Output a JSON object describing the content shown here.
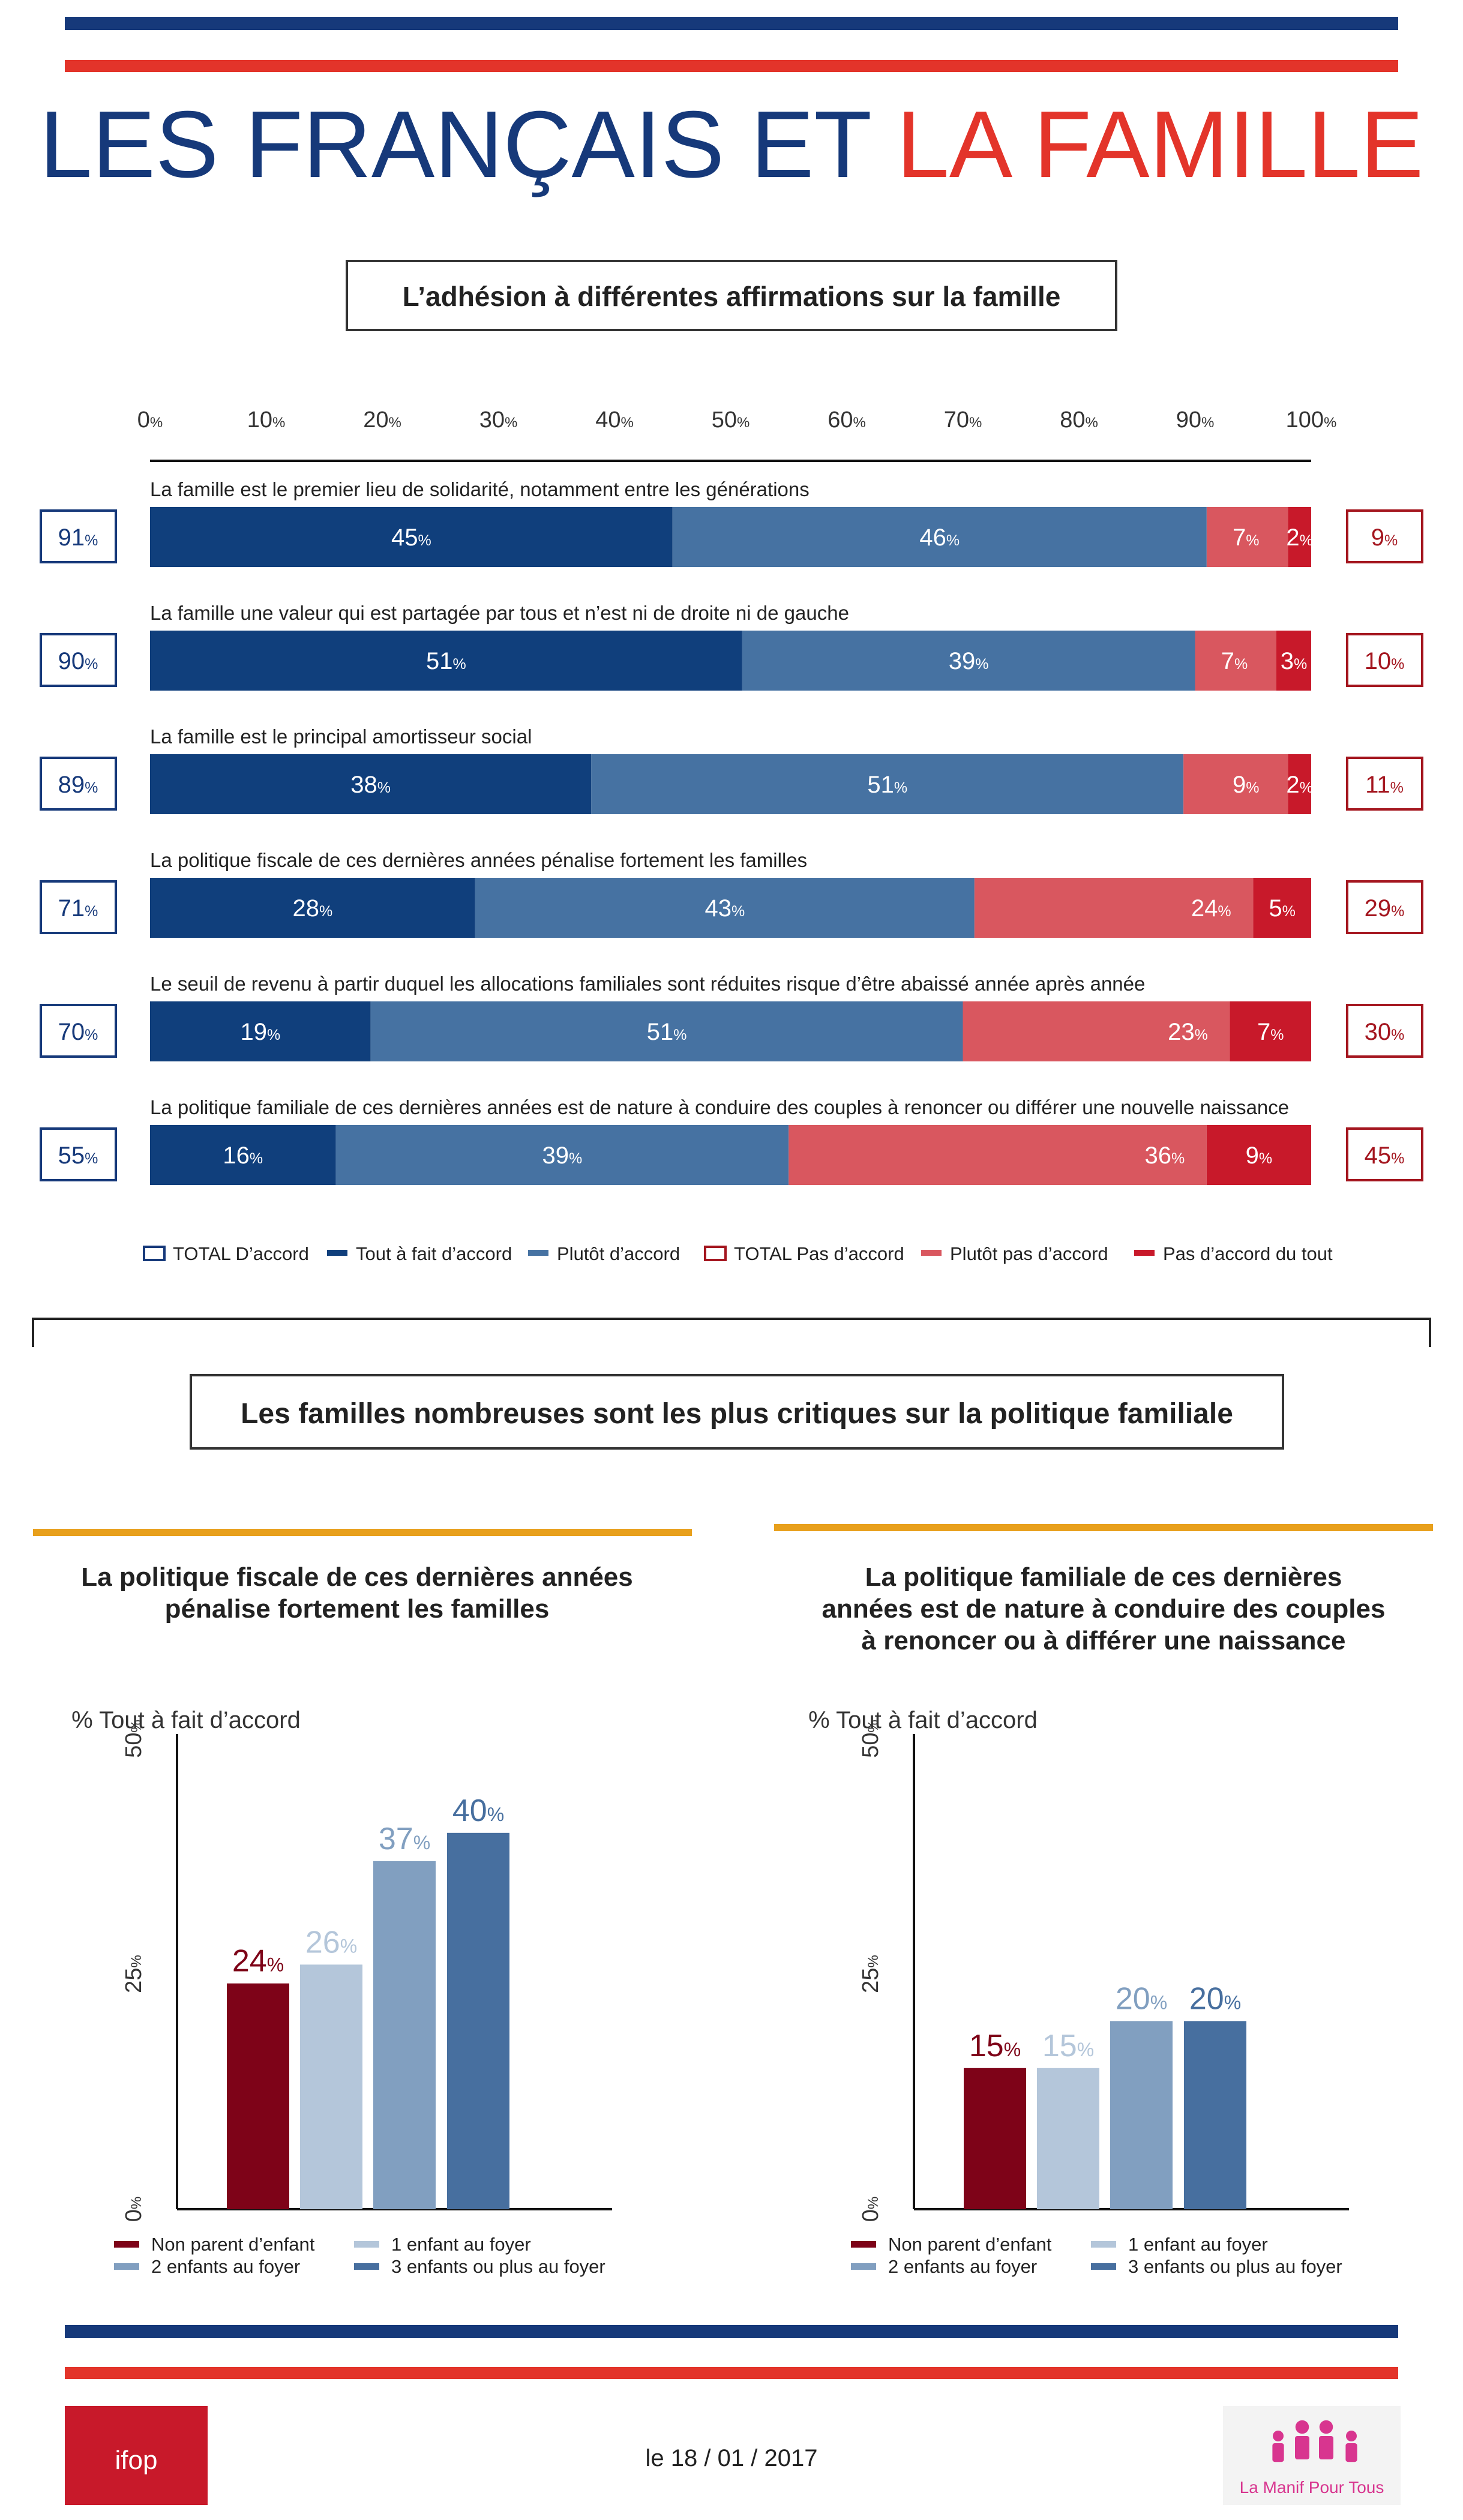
{
  "title": {
    "part1": "LES FRANÇAIS ET ",
    "part2": "LA FAMILLE"
  },
  "colors": {
    "navy": "#16397a",
    "red": "#e3342a",
    "tout_a_fait": "#103f7c",
    "plutot": "#4672a2",
    "plutot_pas": "#d9575f",
    "pas_du_tout": "#c8192a",
    "total_pas_text": "#a4161f",
    "non_parent": "#7e0318",
    "un_enfant": "#b4c6da",
    "deux_enfants": "#819fc0",
    "trois_plus": "#476f9f",
    "orange": "#e8a01c"
  },
  "section1": {
    "title": "L’adhésion à différentes affirmations sur la famille"
  },
  "chart_data": [
    {
      "type": "bar",
      "orientation": "horizontal-stacked",
      "title": "L’adhésion à différentes affirmations sur la famille",
      "xlim": [
        0,
        100
      ],
      "x_ticks": [
        "0%",
        "10%",
        "20%",
        "30%",
        "40%",
        "50%",
        "60%",
        "70%",
        "80%",
        "90%",
        "100%"
      ],
      "categories": [
        "La famille est le premier lieu de solidarité, notamment entre les générations",
        "La famille une valeur qui est partagée par tous et n’est ni de droite ni de gauche",
        "La famille est le principal amortisseur social",
        "La politique fiscale de ces dernières années pénalise fortement les familles",
        "Le seuil de revenu à partir duquel les allocations familiales sont réduites risque d’être abaissé année après année",
        "La politique familiale de ces dernières années est de nature à conduire des couples à renoncer ou différer une nouvelle naissance"
      ],
      "series": [
        {
          "name": "Tout à fait d’accord",
          "values": [
            45,
            51,
            38,
            28,
            19,
            16
          ]
        },
        {
          "name": "Plutôt d’accord",
          "values": [
            46,
            39,
            51,
            43,
            51,
            39
          ]
        },
        {
          "name": "Plutôt pas d’accord",
          "values": [
            7,
            7,
            9,
            24,
            23,
            36
          ]
        },
        {
          "name": "Pas d’accord du tout",
          "values": [
            2,
            3,
            2,
            5,
            7,
            9
          ]
        }
      ],
      "totals": {
        "TOTAL D’accord": [
          91,
          90,
          89,
          71,
          70,
          55
        ],
        "TOTAL Pas d’accord": [
          9,
          10,
          11,
          29,
          30,
          45
        ]
      },
      "legend": [
        "TOTAL D’accord",
        "Tout à fait d’accord",
        "Plutôt d’accord",
        "TOTAL Pas d’accord",
        "Plutôt pas d’accord",
        "Pas d’accord du tout"
      ],
      "legend_position": "bottom"
    },
    {
      "type": "bar",
      "title": "La politique fiscale de ces dernières années pénalise fortement les familles",
      "subtitle": "% Tout à fait d’accord",
      "categories": [
        "Non parent d’enfant",
        "1 enfant au foyer",
        "2 enfants au foyer",
        "3 enfants ou plus au foyer"
      ],
      "values": [
        24,
        26,
        37,
        40
      ],
      "ylim": [
        0,
        50
      ],
      "y_ticks": [
        0,
        25,
        50
      ]
    },
    {
      "type": "bar",
      "title": "La politique familiale de ces dernières années est de nature à conduire des couples à renoncer ou à différer une naissance",
      "subtitle": "% Tout à fait d’accord",
      "categories": [
        "Non parent d’enfant",
        "1 enfant au foyer",
        "2 enfants au foyer",
        "3 enfants ou plus au foyer"
      ],
      "values": [
        15,
        15,
        20,
        20
      ],
      "ylim": [
        0,
        50
      ],
      "y_ticks": [
        0,
        25,
        50
      ]
    }
  ],
  "section2": {
    "title": "Les familles nombreuses sont les plus critiques sur la politique familiale",
    "left_title": [
      "La politique fiscale de ces dernières années",
      "pénalise fortement les familles"
    ],
    "right_title": [
      "La politique familiale de ces dernières",
      "années est de nature à conduire des couples",
      "à renoncer ou à différer une naissance"
    ],
    "subtitle": "% Tout à fait d’accord",
    "legend": [
      "Non parent d’enfant",
      "1 enfant au foyer",
      "2 enfants au foyer",
      "3 enfants ou plus au foyer"
    ]
  },
  "footer": {
    "logo_left": "ifop",
    "date": "le 18 / 01 / 2017",
    "logo_right": "La Manif Pour Tous"
  }
}
